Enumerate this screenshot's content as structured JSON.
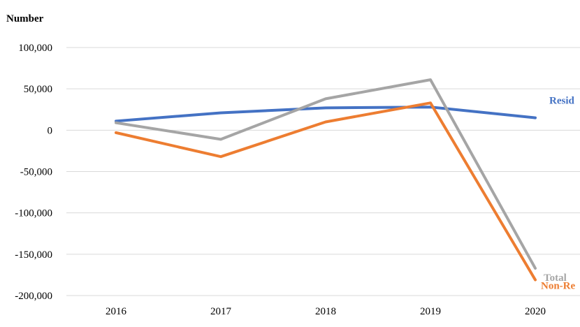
{
  "chart_data": {
    "type": "line",
    "title": "",
    "ylabel": "Number",
    "xlabel": "",
    "categories": [
      "2016",
      "2017",
      "2018",
      "2019",
      "2020"
    ],
    "ylim": [
      -200000,
      100000
    ],
    "yticks": [
      100000,
      50000,
      0,
      -50000,
      -100000,
      -150000,
      -200000
    ],
    "ytick_labels": [
      "100,000",
      "50,000",
      "0",
      "-50,000",
      "-100,000",
      "-150,000",
      "-200,000"
    ],
    "grid": true,
    "series": [
      {
        "name": "Resid",
        "color": "#4472C4",
        "values": [
          11000,
          21000,
          27000,
          28000,
          15000
        ]
      },
      {
        "name": "Total",
        "color": "#A5A5A5",
        "values": [
          9000,
          -11000,
          38000,
          61000,
          -167000
        ]
      },
      {
        "name": "Non-Re",
        "color": "#ED7D31",
        "values": [
          -3000,
          -32000,
          10000,
          33000,
          -181000
        ]
      }
    ]
  }
}
